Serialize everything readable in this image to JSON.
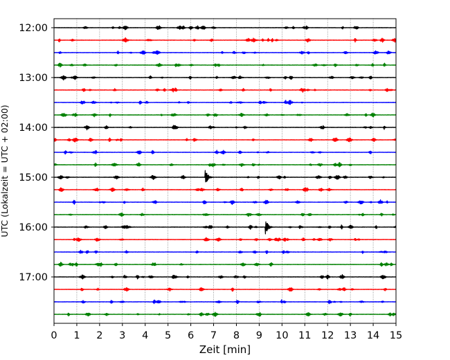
{
  "chart_data": {
    "type": "line",
    "chart_kind": "helicorder",
    "title": "",
    "xlabel": "Zeit  [min]",
    "ylabel": "UTC (Lokalzeit = UTC + 02:00)",
    "xlim": [
      0,
      15
    ],
    "x_ticks": [
      "0",
      "1",
      "2",
      "3",
      "4",
      "5",
      "6",
      "7",
      "8",
      "9",
      "10",
      "11",
      "12",
      "13",
      "14",
      "15"
    ],
    "y_tick_labels": [
      "12:00",
      "13:00",
      "14:00",
      "15:00",
      "16:00",
      "17:00"
    ],
    "trace_start": "12:00",
    "trace_interval_min": 15,
    "trace_count": 24,
    "trace_colors": [
      "#000000",
      "#ff0000",
      "#0000ff",
      "#008000"
    ],
    "vertical_grid": "dotted",
    "events": [
      {
        "trace": 12,
        "minute": 6.65,
        "amplitude": 1.0
      },
      {
        "trace": 16,
        "minute": 9.3,
        "amplitude": 0.9
      }
    ]
  }
}
